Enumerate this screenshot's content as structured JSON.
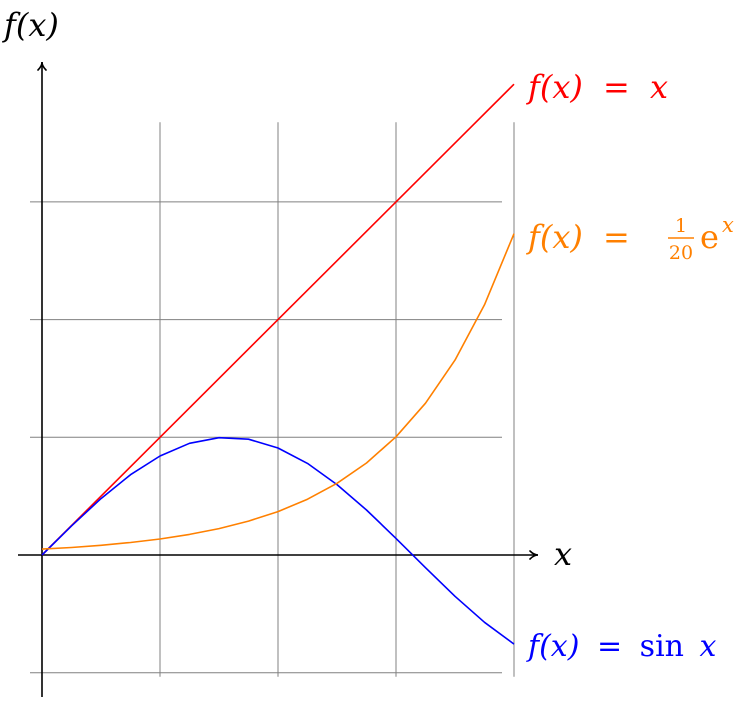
{
  "chart_data": {
    "type": "line",
    "xlabel": "x",
    "ylabel": "f(x)",
    "xlim": [
      -0.2,
      4.2
    ],
    "ylim": [
      -1.2,
      4.2
    ],
    "grid": true,
    "grid_x": [
      0,
      1,
      2,
      3,
      4
    ],
    "grid_y": [
      -1,
      0,
      1,
      2,
      3
    ],
    "series": [
      {
        "name": "f(x) = x",
        "color": "#ff0000",
        "label_parts": {
          "lhs": "f(x)",
          "eq": "=",
          "rhs": "x"
        },
        "x": [
          0,
          4
        ],
        "y": [
          0,
          4
        ]
      },
      {
        "name": "f(x) = sin x",
        "color": "#0000ff",
        "label_parts": {
          "lhs": "f(x)",
          "eq": "=",
          "fn": "sin",
          "rhs": "x"
        },
        "x": [
          0,
          0.25,
          0.5,
          0.75,
          1.0,
          1.25,
          1.5,
          1.75,
          2.0,
          2.25,
          2.5,
          2.75,
          3.0,
          3.25,
          3.5,
          3.75,
          4.0
        ],
        "y": [
          0,
          0.247,
          0.479,
          0.682,
          0.841,
          0.949,
          0.997,
          0.984,
          0.909,
          0.778,
          0.598,
          0.382,
          0.141,
          -0.108,
          -0.351,
          -0.572,
          -0.757
        ]
      },
      {
        "name": "f(x) = 1/20 e^x",
        "color": "#ff8000",
        "label_parts": {
          "lhs": "f(x)",
          "eq": "=",
          "num": "1",
          "den": "20",
          "base": "e",
          "exp": "x"
        },
        "x": [
          0,
          0.25,
          0.5,
          0.75,
          1.0,
          1.25,
          1.5,
          1.75,
          2.0,
          2.25,
          2.5,
          2.75,
          3.0,
          3.25,
          3.5,
          3.75,
          4.0
        ],
        "y": [
          0.05,
          0.064,
          0.082,
          0.106,
          0.136,
          0.175,
          0.224,
          0.288,
          0.369,
          0.474,
          0.609,
          0.782,
          1.004,
          1.29,
          1.656,
          2.126,
          2.73
        ]
      }
    ]
  }
}
